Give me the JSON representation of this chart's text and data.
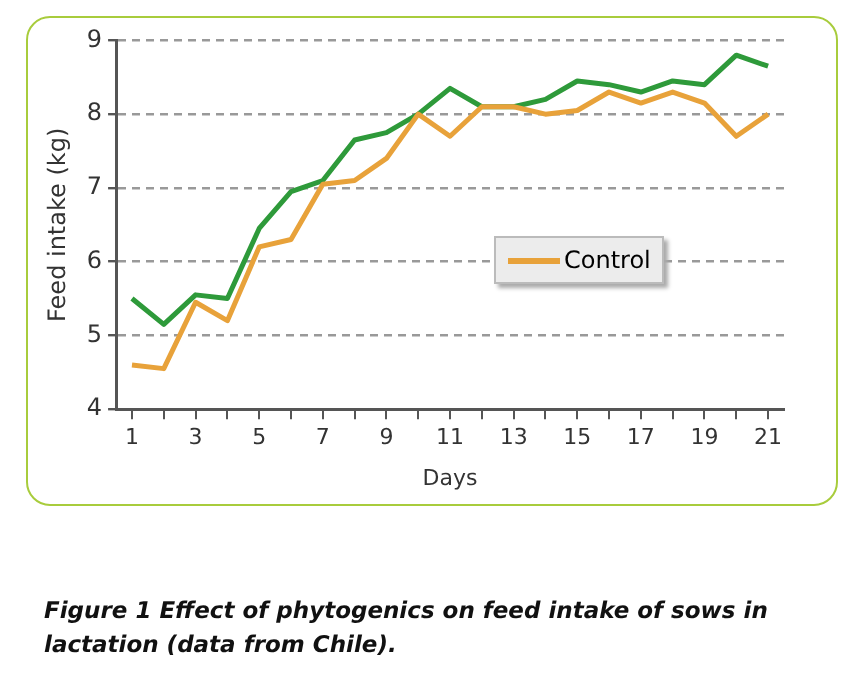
{
  "chart_data": {
    "type": "line",
    "title": "Figure 1 Effect of phytogenics on feed intake of sows in lactation (data from Chile).",
    "xlabel": "Days",
    "ylabel": "Feed intake (kg)",
    "x": [
      1,
      2,
      3,
      4,
      5,
      6,
      7,
      8,
      9,
      10,
      11,
      12,
      13,
      14,
      15,
      16,
      17,
      18,
      19,
      20,
      21
    ],
    "series": [
      {
        "name": "Control",
        "color": "#e8a23a",
        "values": [
          4.6,
          4.55,
          5.45,
          5.2,
          6.2,
          6.3,
          7.05,
          7.1,
          7.4,
          8.0,
          7.7,
          8.1,
          8.1,
          8.0,
          8.05,
          8.3,
          8.15,
          8.3,
          8.15,
          7.7,
          8.0
        ]
      },
      {
        "color": "#2e9a3a",
        "values": [
          5.5,
          5.15,
          5.55,
          5.5,
          6.45,
          6.95,
          7.1,
          7.65,
          7.75,
          8.0,
          8.35,
          8.1,
          8.1,
          8.2,
          8.45,
          8.4,
          8.3,
          8.45,
          8.4,
          8.8,
          8.65
        ]
      }
    ],
    "xlim": [
      0.5,
      21.5
    ],
    "xticks": [
      1,
      {
        "value": 2,
        "label": null
      },
      3,
      {
        "value": 4,
        "label": null
      },
      5,
      {
        "value": 6,
        "label": null
      },
      7,
      {
        "value": 8,
        "label": null
      },
      9,
      {
        "value": 10,
        "label": null
      },
      11,
      {
        "value": 12,
        "label": null
      },
      13,
      {
        "value": 14,
        "label": null
      },
      15,
      {
        "value": 16,
        "label": null
      },
      17,
      {
        "value": 18,
        "label": null
      },
      19,
      {
        "value": 20,
        "label": null
      },
      21
    ],
    "ylim": [
      4,
      9
    ],
    "yticks": [
      4,
      5,
      6,
      7,
      8,
      9
    ],
    "grid": "y",
    "legend": "right",
    "marker": "none",
    "line_style": "solid"
  }
}
